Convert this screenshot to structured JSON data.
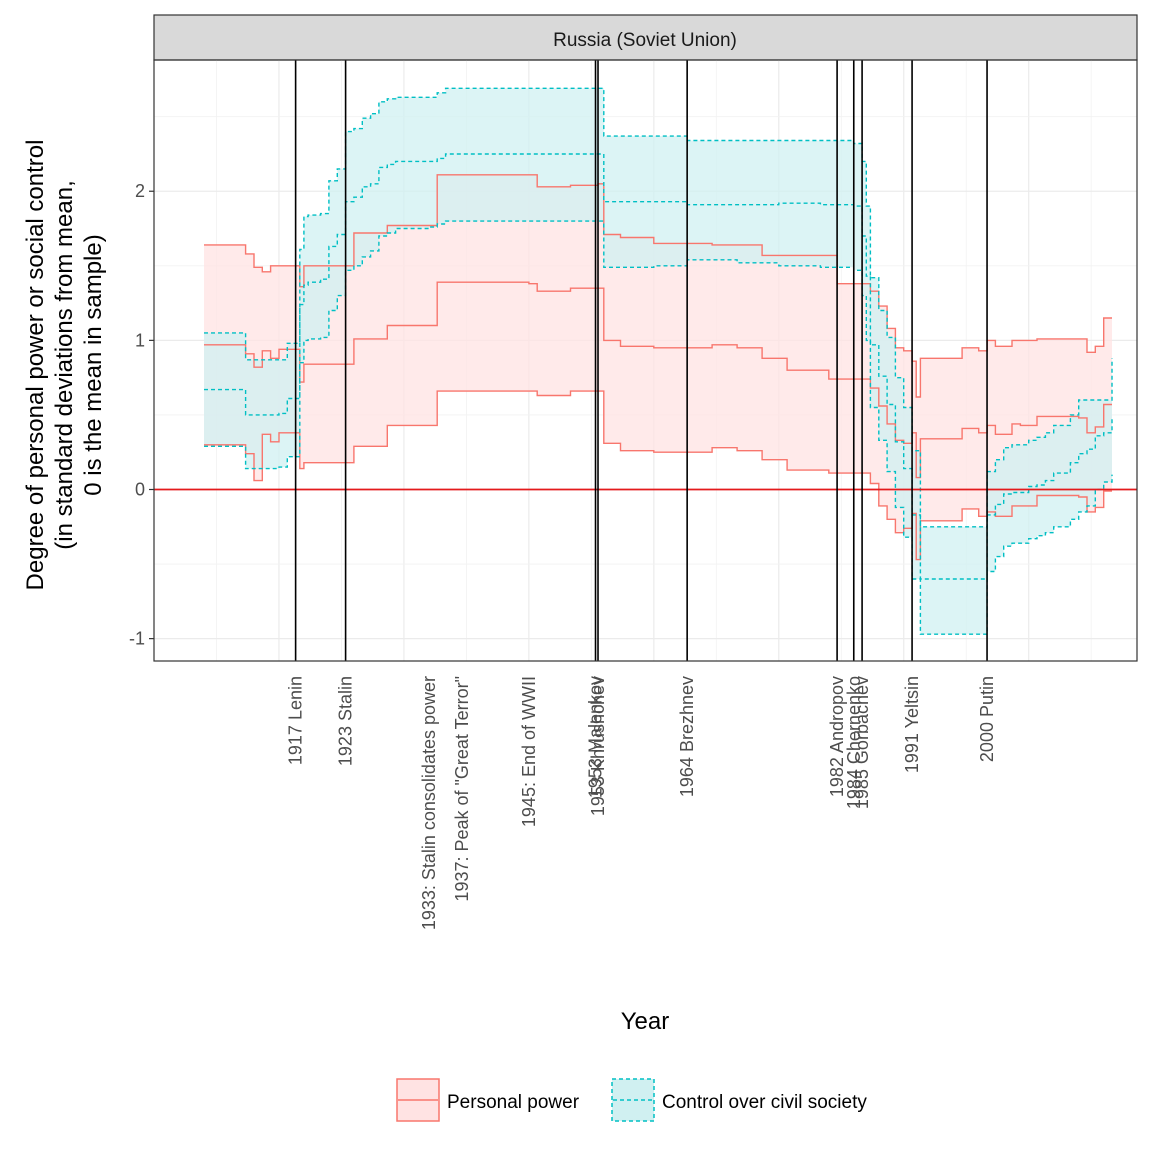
{
  "chart_data": {
    "type": "area",
    "panel_title": "Russia (Soviet Union)",
    "xlabel": "Year",
    "ylabel": [
      "Degree of personal power or social control",
      "(in standard deviations from mean,",
      "0 is the mean in sample)"
    ],
    "xlim": [
      1900,
      2018
    ],
    "ylim": [
      -1.15,
      2.88
    ],
    "y_ticks": [
      -1,
      0,
      1,
      2
    ],
    "y_tick_labels": [
      "-1",
      "0",
      "1",
      "2"
    ],
    "x_minor_grid": [
      1907.5,
      1922.5,
      1937.5,
      1952.5,
      1967.5,
      1982.5,
      1997.5,
      2012.5
    ],
    "x_major_grid": [
      1915,
      1930,
      1945,
      1960,
      1975,
      1990,
      2005
    ],
    "grid": true,
    "reference_line": {
      "y": 0,
      "color": "#e41a1c"
    },
    "events": [
      {
        "year": 1917,
        "label": "1917 Lenin",
        "line": true
      },
      {
        "year": 1923,
        "label": "1923 Stalin",
        "line": true
      },
      {
        "year": 1933,
        "label": "1933: Stalin consolidates power",
        "line": false
      },
      {
        "year": 1937,
        "label": "1937: Peak of \"Great Terror\"",
        "line": false
      },
      {
        "year": 1945,
        "label": "1945: End of WWII",
        "line": false
      },
      {
        "year": 1953,
        "label": "1953 Malenkov",
        "line": true
      },
      {
        "year": 1953.3,
        "label": "1953 Khrushchev",
        "line": true
      },
      {
        "year": 1964,
        "label": "1964 Brezhnev",
        "line": true
      },
      {
        "year": 1982,
        "label": "1982 Andropov",
        "line": true
      },
      {
        "year": 1984,
        "label": "1984 Chernenko",
        "line": true
      },
      {
        "year": 1985,
        "label": "1985 Gorbachev",
        "line": true
      },
      {
        "year": 1991,
        "label": "1991 Yeltsin",
        "line": true
      },
      {
        "year": 2000,
        "label": "2000 Putin",
        "line": true
      }
    ],
    "series": [
      {
        "name": "Personal power",
        "color": "#f8766d",
        "fill": "#ffe3e3",
        "line_style": "solid",
        "x": [
          1906,
          1910,
          1911,
          1912,
          1913,
          1914,
          1915,
          1916.5,
          1917,
          1917.5,
          1918,
          1922,
          1923,
          1924,
          1925,
          1928,
          1933,
          1934,
          1937,
          1945,
          1946,
          1949,
          1950,
          1953.3,
          1954,
          1956,
          1960,
          1964,
          1967,
          1970,
          1973,
          1976,
          1981,
          1982,
          1985,
          1986,
          1987,
          1988,
          1989,
          1990,
          1991,
          1991.5,
          1992,
          1993,
          1996,
          1997,
          1999,
          2000,
          2001,
          2003,
          2004,
          2006,
          2011,
          2012,
          2013,
          2014,
          2015
        ],
        "upper": [
          1.64,
          1.64,
          1.58,
          1.49,
          1.46,
          1.5,
          1.5,
          1.5,
          1.5,
          1.36,
          1.5,
          1.5,
          1.5,
          1.72,
          1.72,
          1.77,
          1.77,
          2.11,
          2.11,
          2.11,
          2.03,
          2.03,
          2.04,
          2.05,
          1.71,
          1.69,
          1.65,
          1.65,
          1.64,
          1.64,
          1.57,
          1.57,
          1.57,
          1.38,
          1.38,
          1.33,
          1.23,
          1.08,
          0.95,
          0.93,
          0.86,
          0.62,
          0.88,
          0.88,
          0.88,
          0.95,
          0.93,
          1.0,
          0.96,
          1.0,
          1.0,
          1.01,
          1.01,
          0.92,
          0.96,
          1.15,
          1.15
        ],
        "mid": [
          0.97,
          0.97,
          0.91,
          0.82,
          0.93,
          0.88,
          0.94,
          0.94,
          0.94,
          0.72,
          0.84,
          0.84,
          0.84,
          1.01,
          1.01,
          1.1,
          1.1,
          1.39,
          1.39,
          1.38,
          1.33,
          1.33,
          1.35,
          1.35,
          1.0,
          0.96,
          0.95,
          0.95,
          0.97,
          0.95,
          0.88,
          0.8,
          0.74,
          0.74,
          0.74,
          0.68,
          0.56,
          0.44,
          0.33,
          0.31,
          0.38,
          0.08,
          0.34,
          0.34,
          0.34,
          0.41,
          0.38,
          0.43,
          0.37,
          0.44,
          0.43,
          0.49,
          0.48,
          0.38,
          0.42,
          0.57,
          0.57
        ],
        "lower": [
          0.3,
          0.3,
          0.24,
          0.06,
          0.37,
          0.32,
          0.38,
          0.38,
          0.38,
          0.14,
          0.18,
          0.18,
          0.18,
          0.29,
          0.29,
          0.43,
          0.43,
          0.66,
          0.66,
          0.66,
          0.63,
          0.63,
          0.66,
          0.66,
          0.31,
          0.26,
          0.25,
          0.25,
          0.28,
          0.26,
          0.2,
          0.13,
          0.11,
          0.11,
          0.11,
          0.04,
          -0.11,
          -0.2,
          -0.29,
          -0.26,
          -0.16,
          -0.47,
          -0.21,
          -0.21,
          -0.21,
          -0.13,
          -0.18,
          -0.15,
          -0.18,
          -0.11,
          -0.11,
          -0.04,
          -0.05,
          -0.15,
          -0.12,
          -0.01,
          -0.01
        ]
      },
      {
        "name": "Control over civil society",
        "color": "#00bfc4",
        "fill": "#d0f0f1",
        "line_style": "dashed",
        "x": [
          1906,
          1910,
          1911,
          1915,
          1916,
          1917,
          1917.5,
          1918,
          1918.5,
          1919,
          1920,
          1921,
          1922,
          1923,
          1924,
          1925,
          1926,
          1927,
          1928,
          1929,
          1933,
          1934,
          1935,
          1937,
          1953,
          1954,
          1956,
          1960,
          1964,
          1967,
          1970,
          1975,
          1976,
          1980,
          1984,
          1985,
          1985.5,
          1986,
          1987,
          1988,
          1989,
          1990,
          1991,
          1992,
          1996,
          2000,
          2001,
          2002,
          2003,
          2005,
          2006,
          2007,
          2008,
          2010,
          2011,
          2012,
          2013,
          2014,
          2015
        ],
        "upper": [
          1.05,
          1.05,
          0.87,
          0.87,
          0.98,
          0.98,
          1.61,
          1.83,
          1.84,
          1.84,
          1.85,
          2.07,
          2.15,
          2.4,
          2.42,
          2.49,
          2.52,
          2.6,
          2.62,
          2.63,
          2.63,
          2.66,
          2.69,
          2.69,
          2.69,
          2.37,
          2.37,
          2.37,
          2.34,
          2.34,
          2.34,
          2.34,
          2.34,
          2.34,
          2.32,
          2.2,
          1.9,
          1.42,
          1.2,
          1.02,
          0.75,
          0.55,
          0.26,
          -0.25,
          -0.25,
          0.12,
          0.2,
          0.28,
          0.3,
          0.33,
          0.35,
          0.38,
          0.43,
          0.5,
          0.6,
          0.6,
          0.6,
          0.6,
          0.88
        ],
        "mid": [
          0.67,
          0.67,
          0.5,
          0.51,
          0.61,
          0.61,
          1.24,
          1.37,
          1.39,
          1.39,
          1.41,
          1.63,
          1.71,
          1.93,
          1.96,
          2.03,
          2.05,
          2.16,
          2.18,
          2.2,
          2.2,
          2.22,
          2.25,
          2.25,
          2.25,
          1.93,
          1.93,
          1.93,
          1.91,
          1.91,
          1.91,
          1.92,
          1.92,
          1.91,
          1.9,
          1.7,
          1.43,
          0.97,
          0.76,
          0.57,
          0.32,
          0.14,
          -0.17,
          -0.6,
          -0.6,
          -0.17,
          -0.1,
          -0.03,
          -0.02,
          0.02,
          0.03,
          0.06,
          0.11,
          0.18,
          0.24,
          0.27,
          0.36,
          0.38,
          0.48
        ],
        "lower": [
          0.29,
          0.29,
          0.14,
          0.15,
          0.22,
          0.22,
          0.85,
          1.0,
          1.01,
          1.01,
          1.02,
          1.2,
          1.3,
          1.47,
          1.5,
          1.56,
          1.6,
          1.7,
          1.72,
          1.75,
          1.76,
          1.78,
          1.8,
          1.8,
          1.8,
          1.49,
          1.49,
          1.5,
          1.54,
          1.54,
          1.52,
          1.5,
          1.5,
          1.49,
          1.47,
          1.3,
          1.0,
          0.55,
          0.33,
          0.12,
          -0.12,
          -0.32,
          -0.6,
          -0.97,
          -0.97,
          -0.55,
          -0.45,
          -0.38,
          -0.36,
          -0.33,
          -0.31,
          -0.29,
          -0.25,
          -0.2,
          -0.15,
          -0.11,
          0.0,
          0.05,
          0.1
        ]
      }
    ],
    "legend": {
      "position": "bottom",
      "entries": [
        "Personal power",
        "Control over civil society"
      ]
    }
  }
}
